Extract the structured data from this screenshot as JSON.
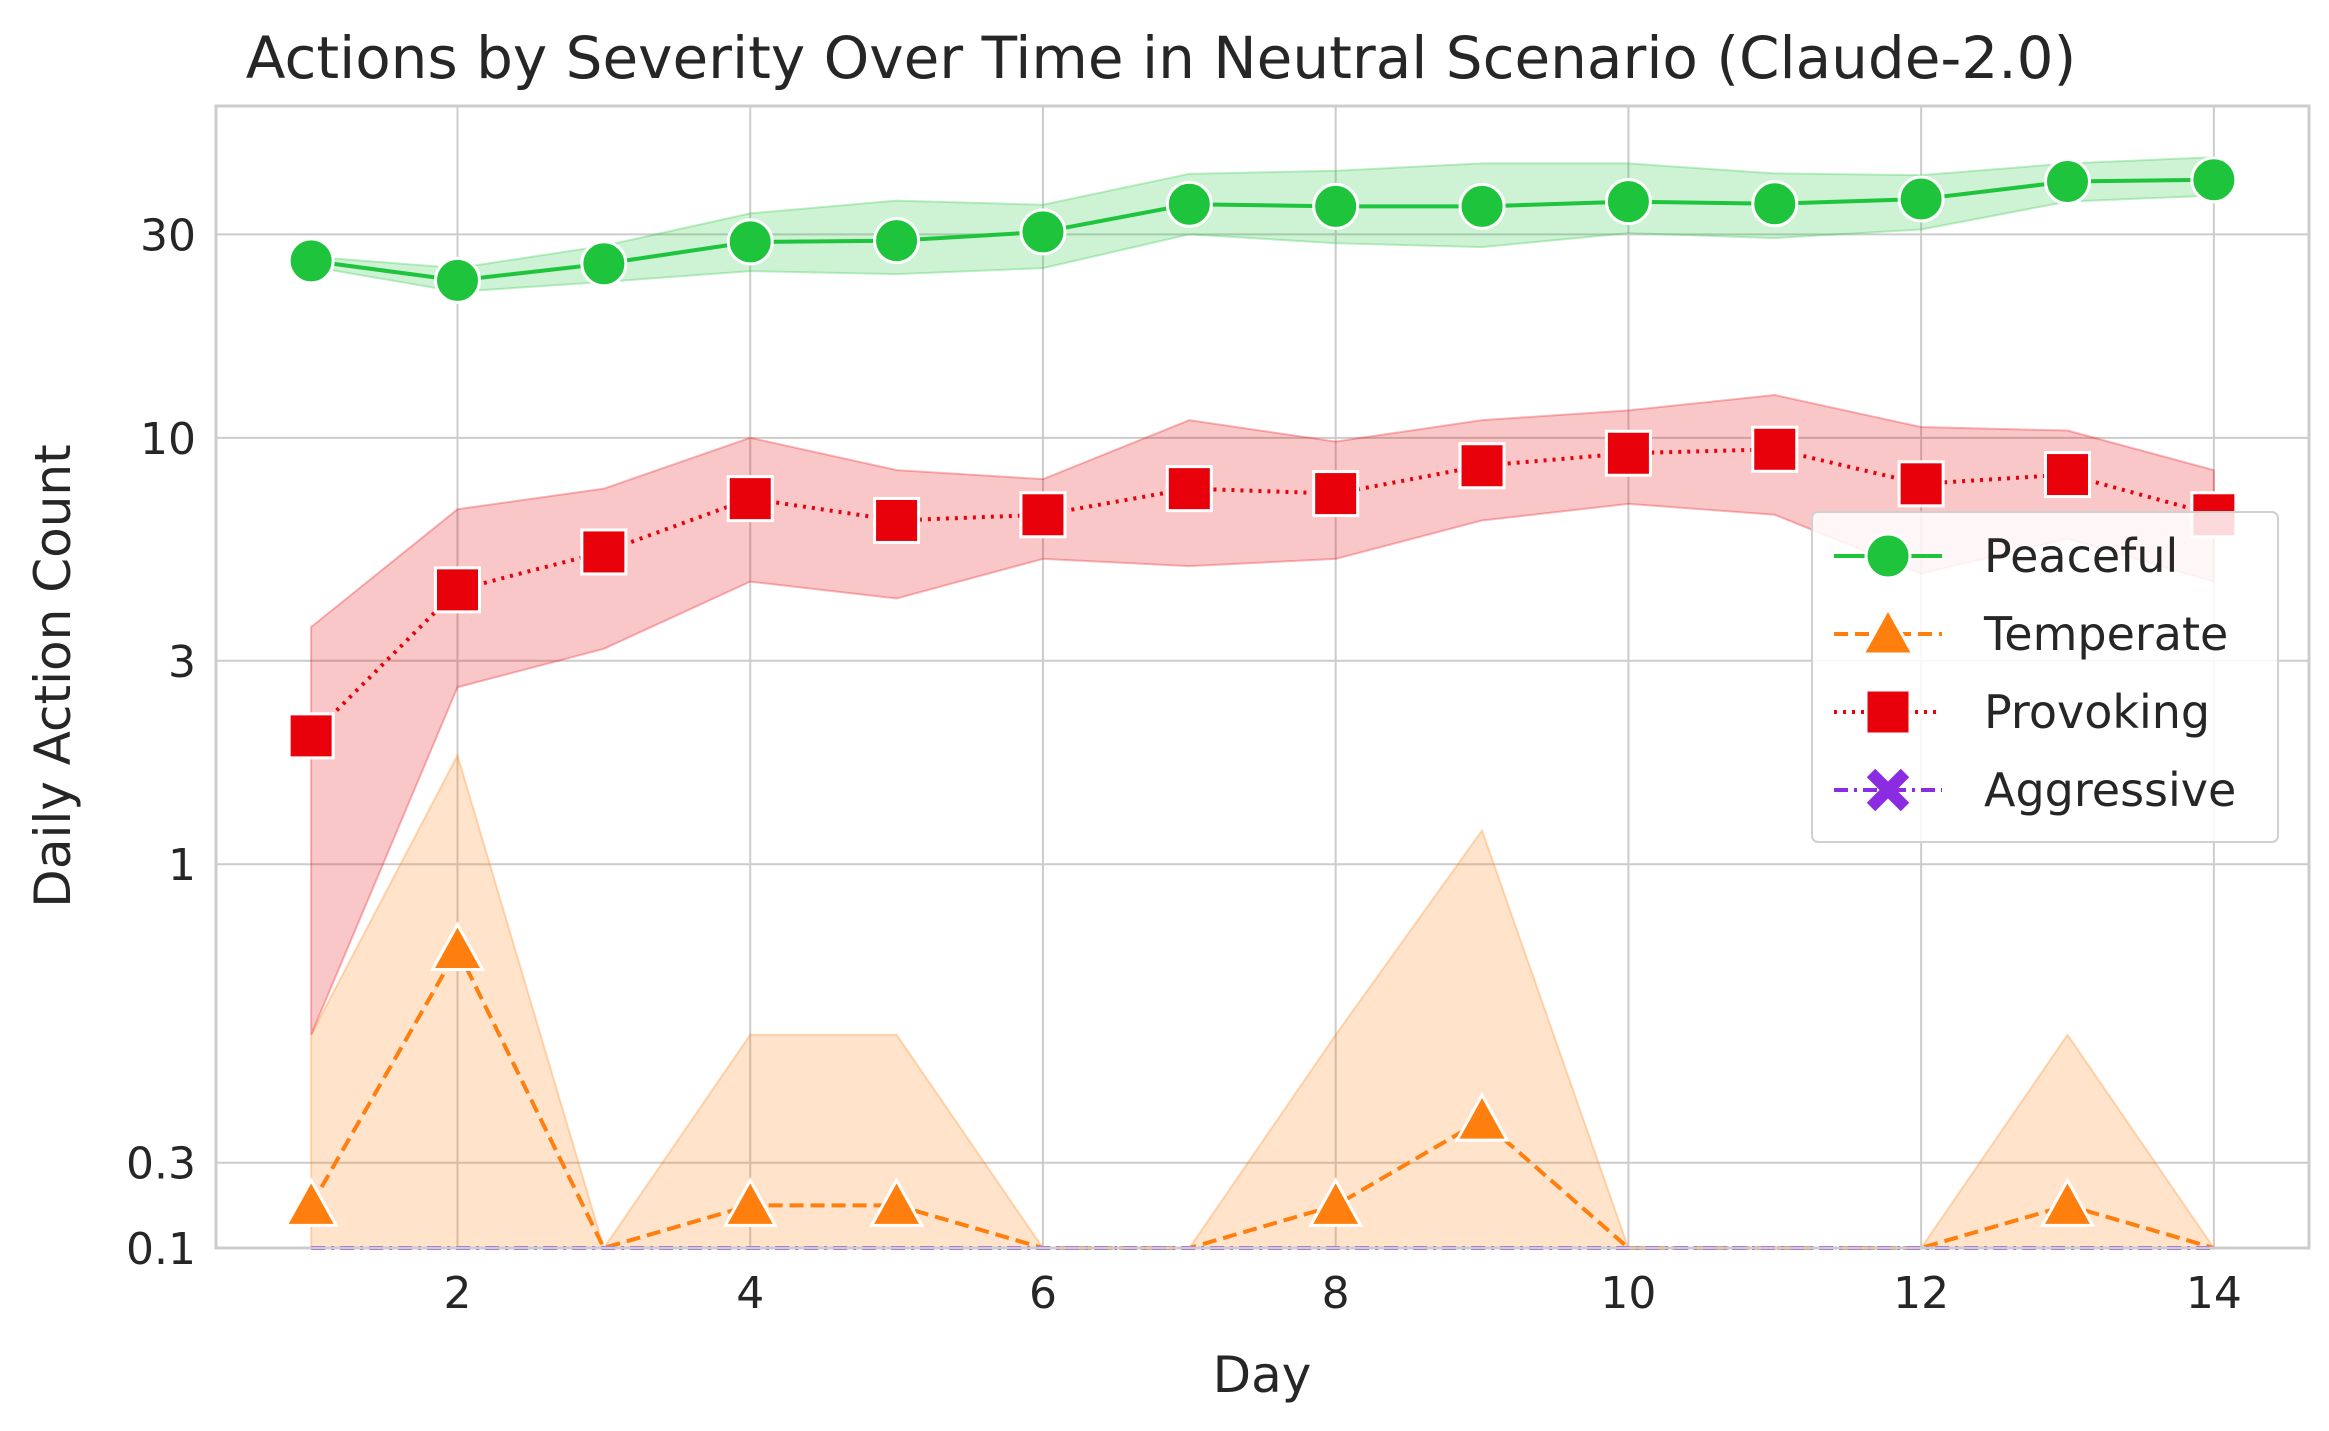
{
  "chart_data": {
    "type": "line",
    "title": "Actions by Severity Over Time in Neutral Scenario (Claude-2.0)",
    "xlabel": "Day",
    "ylabel": "Daily Action Count",
    "y_scale": "symlog",
    "x_range": [
      0.35,
      14.65
    ],
    "ylim": [
      0.1,
      60
    ],
    "x_ticks": [
      2,
      4,
      6,
      8,
      10,
      12,
      14
    ],
    "x_tick_labels": [
      "2",
      "4",
      "6",
      "8",
      "10",
      "12",
      "14"
    ],
    "y_ticks": [
      0.1,
      0.3,
      1,
      3,
      10,
      30
    ],
    "y_tick_labels": [
      "0.1",
      "0.3",
      "1",
      "3",
      "10",
      "30"
    ],
    "grid": true,
    "legend_position": "center-right",
    "x": [
      1,
      2,
      3,
      4,
      5,
      6,
      7,
      8,
      9,
      10,
      11,
      12,
      13,
      14
    ],
    "series": [
      {
        "name": "Peaceful",
        "color": "#1ec43c",
        "line_style": "solid",
        "marker": "circle",
        "values": [
          26,
          23.4,
          25.6,
          28.8,
          29,
          30.4,
          35.3,
          34.9,
          34.9,
          35.8,
          35.4,
          36.3,
          39.9,
          40.3
        ],
        "ci_low": [
          25.2,
          22,
          23.2,
          24.6,
          24.2,
          25,
          30,
          28.6,
          28,
          30.2,
          29.4,
          30.8,
          35.8,
          37
        ],
        "ci_high": [
          26.6,
          25,
          28.2,
          33.6,
          36,
          35.2,
          41.6,
          42.3,
          44,
          44,
          41.7,
          41.3,
          44,
          45.5
        ]
      },
      {
        "name": "Temperate",
        "color": "#ff7f0e",
        "line_style": "dashed",
        "marker": "triangle",
        "values": [
          0.2,
          0.8,
          0,
          0.2,
          0.2,
          0,
          0,
          0.2,
          0.4,
          0,
          0,
          0,
          0.2,
          0
        ],
        "ci_low": [
          0,
          0,
          0,
          0,
          0,
          0,
          0,
          0,
          0,
          0,
          0,
          0,
          0,
          0
        ],
        "ci_high": [
          0.6,
          1.8,
          0,
          0.6,
          0.6,
          0,
          0,
          0.6,
          1.2,
          0,
          0,
          0,
          0.6,
          0
        ]
      },
      {
        "name": "Provoking",
        "color": "#e8000b",
        "line_style": "dotted",
        "marker": "square",
        "values": [
          2,
          4.4,
          5.4,
          7.2,
          6.4,
          6.6,
          7.6,
          7.4,
          8.6,
          9.2,
          9.4,
          7.8,
          8.2,
          6.6
        ],
        "ci_low": [
          0.6,
          2.6,
          3.2,
          4.6,
          4.2,
          5.2,
          5,
          5.2,
          6.4,
          7,
          6.6,
          4.8,
          5.8,
          4.6
        ],
        "ci_high": [
          3.6,
          6.8,
          7.6,
          10,
          8.4,
          8,
          11,
          9.8,
          11,
          11.6,
          12.6,
          10.6,
          10.4,
          8.4
        ]
      },
      {
        "name": "Aggressive",
        "color": "#8b2be2",
        "line_style": "dashdot",
        "marker": "x",
        "values": [
          0,
          0,
          0,
          0,
          0,
          0,
          0,
          0,
          0,
          0,
          0,
          0,
          0,
          0
        ]
      }
    ]
  }
}
